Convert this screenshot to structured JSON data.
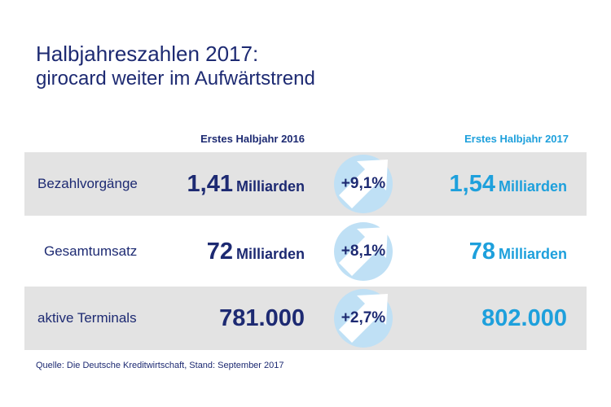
{
  "title": {
    "line1": "Halbjahreszahlen 2017:",
    "line2": "girocard weiter im Aufwärtstrend"
  },
  "columns": {
    "left": "Erstes Halbjahr 2016",
    "right": "Erstes Halbjahr 2017"
  },
  "rows": [
    {
      "label": "Bezahlvorgänge",
      "value_2016": "1,41",
      "unit_2016": "Milliarden",
      "growth": "+9,1%",
      "value_2017": "1,54",
      "unit_2017": "Milliarden"
    },
    {
      "label": "Gesamtumsatz",
      "value_2016": "72",
      "unit_2016": "Milliarden",
      "growth": "+8,1%",
      "value_2017": "78",
      "unit_2017": "Milliarden"
    },
    {
      "label": "aktive Terminals",
      "value_2016": "781.000",
      "growth": "+2,7%",
      "value_2017": "802.000"
    }
  ],
  "source": "Quelle: Die Deutsche Kreditwirtschaft, Stand: September 2017",
  "colors": {
    "navy": "#1d2a72",
    "blue": "#1ea0dc",
    "shade": "#e3e3e3",
    "arrow_circle": "#bfe0f5"
  },
  "icons": {
    "growth": "up-right-arrow-circle-icon"
  }
}
